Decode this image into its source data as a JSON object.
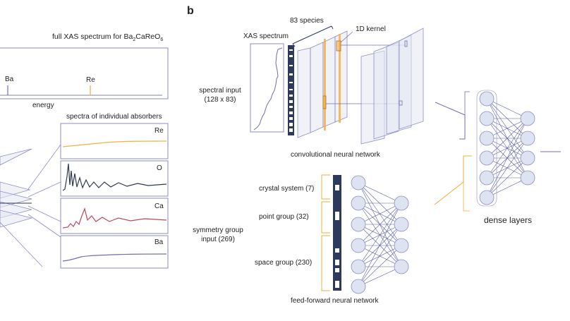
{
  "panel_b": "b",
  "left": {
    "full_spectrum_title_prefix": "full XAS spectrum for Ba",
    "formula_sub1": "2",
    "formula_mid": "CaReO",
    "formula_sub2": "6",
    "energy_label": "energy",
    "peak_ba": "Ba",
    "peak_re": "Re",
    "individual_title": "spectra of individual absorbers",
    "absorbers": [
      "Re",
      "O",
      "Ca",
      "Ba"
    ]
  },
  "cnn": {
    "species": "83 species",
    "kernel": "1D kernel",
    "xas_spectrum": "XAS spectrum",
    "spectral_input_1": "spectral input",
    "spectral_input_2": "(128 x 83)",
    "caption": "convolutional neural network"
  },
  "ffn": {
    "crystal_system": "crystal system (7)",
    "point_group": "point group (32)",
    "space_group": "space group (230)",
    "symmetry_1": "symmetry group",
    "symmetry_2": "input (269)",
    "caption": "feed-forward neural network"
  },
  "dense_label": "dense layers",
  "colors": {
    "outline": "#8e8ec4",
    "dark_block": "#2e3a5c",
    "orange": "#f2ac3c",
    "re_curve": "#f2b23c",
    "o_curve": "#2f3a52",
    "ca_curve": "#c0485c",
    "ba_curve": "#6f6fb0",
    "node_fill": "#dde3f0"
  }
}
